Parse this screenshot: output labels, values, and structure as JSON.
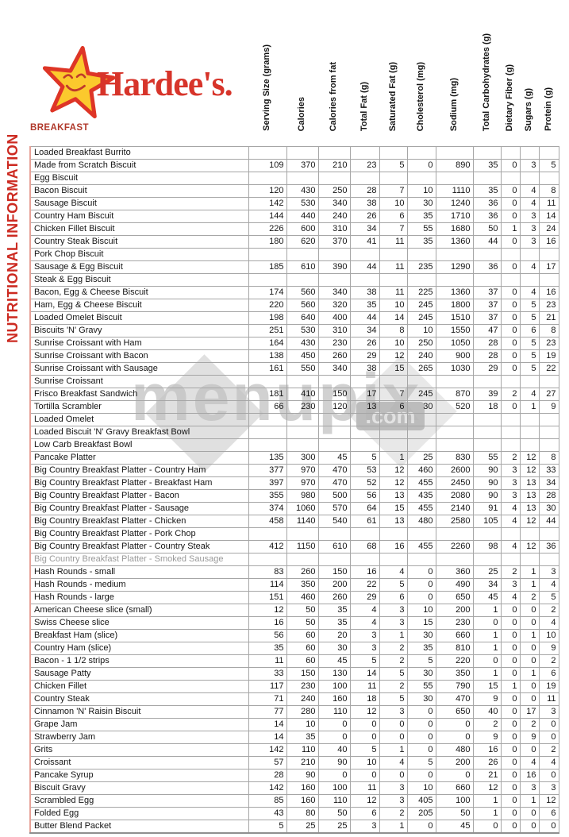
{
  "brand": {
    "wordmark": "Hardee's."
  },
  "sidebar": {
    "title": "NUTRITIONAL INFORMATION"
  },
  "section": {
    "label": "BREAKFAST"
  },
  "watermark": {
    "text": "menupix",
    "suffix": ".com"
  },
  "colors": {
    "brand_red": "#d7342a",
    "section_red": "#b0392b",
    "title_red": "#cc2a21",
    "star_yellow": "#fbc92d",
    "grid_gray": "#a6a6a6",
    "muted_gray": "#9a9a9a"
  },
  "table": {
    "columns": [
      "Serving Size (grams)",
      "Calories",
      "Calories from fat",
      "Total Fat (g)",
      "Saturated Fat (g)",
      "Cholesterol (mg)",
      "Sodium (mg)",
      "Total Carbohydrates (g)",
      "Dietary Fiber (g)",
      "Sugars (g)",
      "Protein (g)"
    ],
    "rows": [
      {
        "name": "Loaded Breakfast Burrito",
        "values": []
      },
      {
        "name": "Made from Scratch Biscuit",
        "values": [
          109,
          370,
          210,
          23,
          5,
          0,
          890,
          35,
          0,
          3,
          5
        ]
      },
      {
        "name": "Egg Biscuit",
        "values": []
      },
      {
        "name": "Bacon Biscuit",
        "values": [
          120,
          430,
          250,
          28,
          7,
          10,
          1110,
          35,
          0,
          4,
          8
        ]
      },
      {
        "name": "Sausage Biscuit",
        "values": [
          142,
          530,
          340,
          38,
          10,
          30,
          1240,
          36,
          0,
          4,
          11
        ]
      },
      {
        "name": "Country Ham Biscuit",
        "values": [
          144,
          440,
          240,
          26,
          6,
          35,
          1710,
          36,
          0,
          3,
          14
        ]
      },
      {
        "name": "Chicken Fillet Biscuit",
        "values": [
          226,
          600,
          310,
          34,
          7,
          55,
          1680,
          50,
          1,
          3,
          24
        ]
      },
      {
        "name": "Country Steak Biscuit",
        "values": [
          180,
          620,
          370,
          41,
          11,
          35,
          1360,
          44,
          0,
          3,
          16
        ]
      },
      {
        "name": "Pork Chop Biscuit",
        "values": []
      },
      {
        "name": "Sausage & Egg Biscuit",
        "values": [
          185,
          610,
          390,
          44,
          11,
          235,
          1290,
          36,
          0,
          4,
          17
        ]
      },
      {
        "name": "Steak & Egg Biscuit",
        "values": []
      },
      {
        "name": "Bacon, Egg & Cheese Biscuit",
        "values": [
          174,
          560,
          340,
          38,
          11,
          225,
          1360,
          37,
          0,
          4,
          16
        ]
      },
      {
        "name": "Ham, Egg & Cheese Biscuit",
        "values": [
          220,
          560,
          320,
          35,
          10,
          245,
          1800,
          37,
          0,
          5,
          23
        ]
      },
      {
        "name": "Loaded Omelet Biscuit",
        "values": [
          198,
          640,
          400,
          44,
          14,
          245,
          1510,
          37,
          0,
          5,
          21
        ]
      },
      {
        "name": "Biscuits 'N' Gravy",
        "values": [
          251,
          530,
          310,
          34,
          8,
          10,
          1550,
          47,
          0,
          6,
          8
        ]
      },
      {
        "name": "Sunrise Croissant with Ham",
        "values": [
          164,
          430,
          230,
          26,
          10,
          250,
          1050,
          28,
          0,
          5,
          23
        ]
      },
      {
        "name": "Sunrise Croissant with Bacon",
        "values": [
          138,
          450,
          260,
          29,
          12,
          240,
          900,
          28,
          0,
          5,
          19
        ]
      },
      {
        "name": "Sunrise Croissant with Sausage",
        "values": [
          161,
          550,
          340,
          38,
          15,
          265,
          1030,
          29,
          0,
          5,
          22
        ]
      },
      {
        "name": "Sunrise Croissant",
        "values": []
      },
      {
        "name": "Frisco Breakfast Sandwich",
        "values": [
          181,
          410,
          150,
          17,
          7,
          245,
          870,
          39,
          2,
          4,
          27
        ]
      },
      {
        "name": "Tortilla Scrambler",
        "values": [
          66,
          230,
          120,
          13,
          6,
          30,
          520,
          18,
          0,
          1,
          9
        ]
      },
      {
        "name": "Loaded Omelet",
        "values": []
      },
      {
        "name": "Loaded Biscuit 'N' Gravy Breakfast Bowl",
        "values": []
      },
      {
        "name": "Low Carb Breakfast Bowl",
        "values": []
      },
      {
        "name": "Pancake Platter",
        "values": [
          135,
          300,
          45,
          5,
          1,
          25,
          830,
          55,
          2,
          12,
          8
        ]
      },
      {
        "name": "Big Country Breakfast Platter - Country Ham",
        "values": [
          377,
          970,
          470,
          53,
          12,
          460,
          2600,
          90,
          3,
          12,
          33
        ]
      },
      {
        "name": "Big Country Breakfast Platter - Breakfast Ham",
        "values": [
          397,
          970,
          470,
          52,
          12,
          455,
          2450,
          90,
          3,
          13,
          34
        ]
      },
      {
        "name": "Big Country Breakfast Platter - Bacon",
        "values": [
          355,
          980,
          500,
          56,
          13,
          435,
          2080,
          90,
          3,
          13,
          28
        ]
      },
      {
        "name": "Big Country Breakfast Platter - Sausage",
        "values": [
          374,
          1060,
          570,
          64,
          15,
          455,
          2140,
          91,
          4,
          13,
          30
        ]
      },
      {
        "name": "Big Country Breakfast Platter - Chicken",
        "values": [
          458,
          1140,
          540,
          61,
          13,
          480,
          2580,
          105,
          4,
          12,
          44
        ]
      },
      {
        "name": "Big Country Breakfast Platter - Pork Chop",
        "values": []
      },
      {
        "name": "Big Country Breakfast Platter - Country Steak",
        "values": [
          412,
          1150,
          610,
          68,
          16,
          455,
          2260,
          98,
          4,
          12,
          36
        ]
      },
      {
        "name": "Big Country Breakfast Platter - Smoked Sausage",
        "values": [],
        "muted": true
      },
      {
        "name": "Hash Rounds - small",
        "values": [
          83,
          260,
          150,
          16,
          4,
          0,
          360,
          25,
          2,
          1,
          3
        ]
      },
      {
        "name": "Hash Rounds - medium",
        "values": [
          114,
          350,
          200,
          22,
          5,
          0,
          490,
          34,
          3,
          1,
          4
        ]
      },
      {
        "name": "Hash Rounds - large",
        "values": [
          151,
          460,
          260,
          29,
          6,
          0,
          650,
          45,
          4,
          2,
          5
        ]
      },
      {
        "name": "American Cheese slice (small)",
        "values": [
          12,
          50,
          35,
          4,
          3,
          10,
          200,
          1,
          0,
          0,
          2
        ]
      },
      {
        "name": "Swiss Cheese slice",
        "values": [
          16,
          50,
          35,
          4,
          3,
          15,
          230,
          0,
          0,
          0,
          4
        ]
      },
      {
        "name": "Breakfast Ham (slice)",
        "values": [
          56,
          60,
          20,
          3,
          1,
          30,
          660,
          1,
          0,
          1,
          10
        ]
      },
      {
        "name": "Country Ham (slice)",
        "values": [
          35,
          60,
          30,
          3,
          2,
          35,
          810,
          1,
          0,
          0,
          9
        ]
      },
      {
        "name": "Bacon - 1 1/2 strips",
        "values": [
          11,
          60,
          45,
          5,
          2,
          5,
          220,
          0,
          0,
          0,
          2
        ]
      },
      {
        "name": "Sausage Patty",
        "values": [
          33,
          150,
          130,
          14,
          5,
          30,
          350,
          1,
          0,
          1,
          6
        ]
      },
      {
        "name": "Chicken Fillet",
        "values": [
          117,
          230,
          100,
          11,
          2,
          55,
          790,
          15,
          1,
          0,
          19
        ]
      },
      {
        "name": "Country Steak",
        "values": [
          71,
          240,
          160,
          18,
          5,
          30,
          470,
          9,
          0,
          0,
          11
        ]
      },
      {
        "name": "Cinnamon 'N' Raisin Biscuit",
        "values": [
          77,
          280,
          110,
          12,
          3,
          0,
          650,
          40,
          0,
          17,
          3
        ]
      },
      {
        "name": "Grape Jam",
        "values": [
          14,
          10,
          0,
          0,
          0,
          0,
          0,
          2,
          0,
          2,
          0
        ]
      },
      {
        "name": "Strawberry Jam",
        "values": [
          14,
          35,
          0,
          0,
          0,
          0,
          0,
          9,
          0,
          9,
          0
        ]
      },
      {
        "name": "Grits",
        "values": [
          142,
          110,
          40,
          5,
          1,
          0,
          480,
          16,
          0,
          0,
          2
        ]
      },
      {
        "name": "Croissant",
        "values": [
          57,
          210,
          90,
          10,
          4,
          5,
          200,
          26,
          0,
          4,
          4
        ]
      },
      {
        "name": "Pancake Syrup",
        "values": [
          28,
          90,
          0,
          0,
          0,
          0,
          0,
          21,
          0,
          16,
          0
        ]
      },
      {
        "name": "Biscuit Gravy",
        "values": [
          142,
          160,
          100,
          11,
          3,
          10,
          660,
          12,
          0,
          3,
          3
        ]
      },
      {
        "name": "Scrambled Egg",
        "values": [
          85,
          160,
          110,
          12,
          3,
          405,
          100,
          1,
          0,
          1,
          12
        ]
      },
      {
        "name": "Folded Egg",
        "values": [
          43,
          80,
          50,
          6,
          2,
          205,
          50,
          1,
          0,
          0,
          6
        ]
      },
      {
        "name": "Butter Blend Packet",
        "values": [
          5,
          25,
          25,
          3,
          1,
          0,
          45,
          0,
          0,
          0,
          0
        ]
      }
    ]
  }
}
